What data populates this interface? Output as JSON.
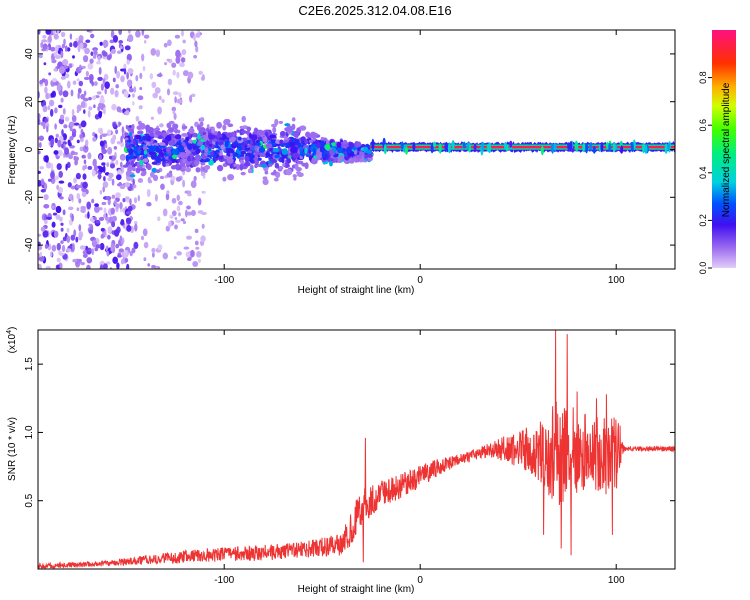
{
  "title": "C2E6.2025.312.04.08.E16",
  "chart_data": [
    {
      "type": "heatmap",
      "xlabel": "Height of straight line (km)",
      "ylabel": "Frequency (Hz)",
      "xlim": [
        -195,
        130
      ],
      "ylim": [
        -50,
        50
      ],
      "xticks": [
        -100,
        0,
        100
      ],
      "yticks": [
        -40,
        -20,
        0,
        20,
        40
      ],
      "colorbar": {
        "label": "Normalized spectral amplitude",
        "range": [
          0,
          1
        ],
        "ticks": [
          0.0,
          0.2,
          0.4,
          0.6,
          0.8
        ],
        "tick_labels": [
          "0.0",
          "0.2",
          "0.4",
          "0.6",
          "0.8"
        ]
      },
      "bands": [
        {
          "name": "noise",
          "x_from": -195,
          "x_to": -145,
          "f_half_width": 50,
          "amplitude": 0.15
        },
        {
          "name": "transition noise",
          "x_from": -145,
          "x_to": -110,
          "f_half_width": 50,
          "amplitude": 0.05
        },
        {
          "name": "broad signal",
          "x_from": -150,
          "x_to": -60,
          "f_half_width": 12,
          "amplitude": 0.3
        },
        {
          "name": "narrowing signal",
          "x_from": -60,
          "x_to": -25,
          "f_half_width": 8,
          "amplitude": 0.35
        },
        {
          "name": "line signal",
          "x_from": -25,
          "x_to": 130,
          "f_center": 1,
          "f_half_width": 3,
          "amplitude": 0.95
        }
      ]
    },
    {
      "type": "line",
      "xlabel": "Height of straight line (km)",
      "ylabel": "SNR (10 * v/v)",
      "y_multiplier": "(x10",
      "y_multiplier_exp": "4",
      "y_multiplier_close": ")",
      "xlim": [
        -195,
        130
      ],
      "ylim": [
        0,
        1.75
      ],
      "xticks": [
        -100,
        0,
        100
      ],
      "yticks": [
        0.5,
        1.0,
        1.5
      ],
      "ytick_labels": [
        "0.5",
        "1.0",
        "1.5"
      ],
      "color": "#ee3333",
      "envelope": {
        "x": [
          -195,
          -160,
          -130,
          -110,
          -80,
          -60,
          -40,
          -35,
          -30,
          -25,
          -20,
          -10,
          0,
          10,
          20,
          30,
          40,
          50,
          60,
          65,
          70,
          75,
          80,
          85,
          90,
          95,
          100,
          104,
          110,
          120,
          130
        ],
        "y": [
          0.02,
          0.04,
          0.08,
          0.1,
          0.12,
          0.14,
          0.18,
          0.3,
          0.45,
          0.5,
          0.55,
          0.6,
          0.68,
          0.75,
          0.8,
          0.85,
          0.88,
          0.88,
          0.86,
          0.86,
          0.85,
          0.85,
          0.86,
          0.86,
          0.85,
          0.86,
          0.86,
          0.88,
          0.88,
          0.88,
          0.88
        ],
        "noise": [
          0.02,
          0.02,
          0.04,
          0.05,
          0.06,
          0.06,
          0.08,
          0.14,
          0.14,
          0.12,
          0.1,
          0.1,
          0.08,
          0.06,
          0.04,
          0.04,
          0.08,
          0.14,
          0.2,
          0.38,
          0.4,
          0.38,
          0.3,
          0.28,
          0.3,
          0.32,
          0.3,
          0.02,
          0.02,
          0.02,
          0.02
        ]
      },
      "spikes": [
        {
          "x": -28,
          "y": 0.96
        },
        {
          "x": -29,
          "y": 0.05
        },
        {
          "x": 61,
          "y": 0.9
        },
        {
          "x": 63,
          "y": 0.25
        },
        {
          "x": 69,
          "y": 1.75
        },
        {
          "x": 72,
          "y": 0.15
        },
        {
          "x": 75,
          "y": 1.72
        },
        {
          "x": 77,
          "y": 0.1
        },
        {
          "x": 80,
          "y": 1.3
        },
        {
          "x": 90,
          "y": 1.25
        },
        {
          "x": 95,
          "y": 1.28
        },
        {
          "x": 98,
          "y": 0.25
        },
        {
          "x": 102,
          "y": 1.05
        }
      ]
    }
  ]
}
